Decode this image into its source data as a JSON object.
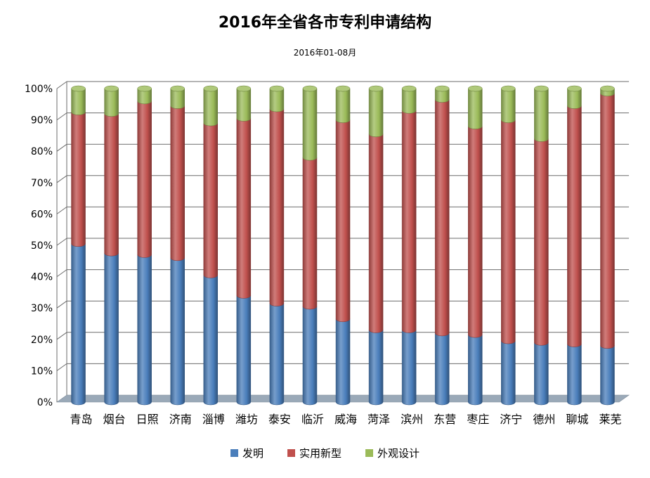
{
  "chart_data": {
    "type": "bar",
    "stacked": "percent",
    "title": "2016年全省各市专利申请结构",
    "subtitle": "2016年01-08月",
    "categories": [
      "青岛",
      "烟台",
      "日照",
      "济南",
      "淄博",
      "潍坊",
      "泰安",
      "临沂",
      "威海",
      "菏泽",
      "滨州",
      "东营",
      "枣庄",
      "济宁",
      "德州",
      "聊城",
      "莱芜"
    ],
    "series": [
      {
        "name": "发明",
        "color": "#4a7ebb",
        "values": [
          50.5,
          47.5,
          47,
          46,
          40.5,
          34,
          31.5,
          30.5,
          26.5,
          23,
          23,
          22,
          21.5,
          19.5,
          19,
          18.5,
          18
        ]
      },
      {
        "name": "实用新型",
        "color": "#c0504d",
        "values": [
          42,
          44.5,
          49,
          48.5,
          48.5,
          56.5,
          62,
          47.5,
          63.5,
          62.5,
          70,
          74.5,
          66.5,
          70.5,
          65,
          76,
          80.5
        ]
      },
      {
        "name": "外观设计",
        "color": "#9bbb59",
        "values": [
          7.5,
          8,
          4,
          5.5,
          11,
          9.5,
          6.5,
          22,
          10,
          14.5,
          7,
          3.5,
          12,
          10,
          16,
          5.5,
          1.5
        ]
      }
    ],
    "y_ticks": [
      "0%",
      "10%",
      "20%",
      "30%",
      "40%",
      "50%",
      "60%",
      "70%",
      "80%",
      "90%",
      "100%"
    ],
    "ylim": [
      0,
      100
    ],
    "grid": true,
    "legend_position": "bottom"
  }
}
